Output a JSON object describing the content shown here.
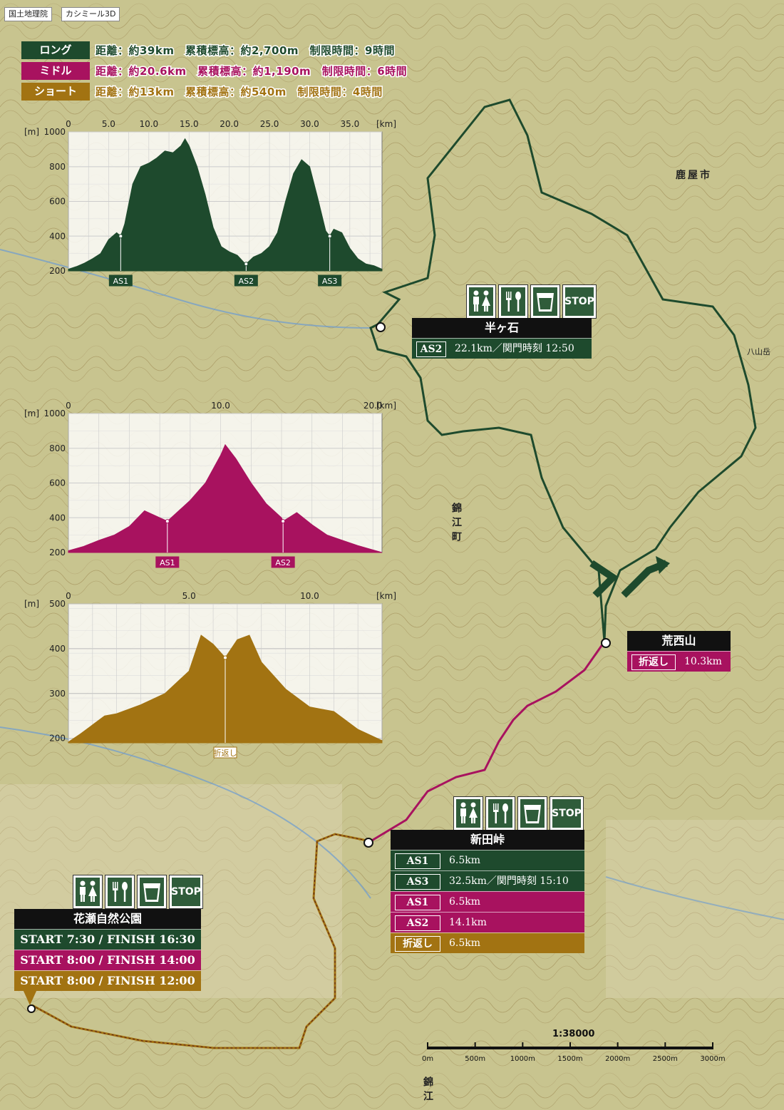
{
  "credits": {
    "gsi": "国土地理院",
    "kashmir": "カシミール3D"
  },
  "colors": {
    "long": "#1e4a2d",
    "middle": "#a8125f",
    "short": "#a27312"
  },
  "courses": [
    {
      "tag": "ロング",
      "info": "距離：約39km　累積標高：約2,700m　制限時間：9時間",
      "color": "#1e4a2d"
    },
    {
      "tag": "ミドル",
      "info": "距離：約20.6km　累積標高：約1,190m　制限時間：6時間",
      "color": "#a8125f"
    },
    {
      "tag": "ショート",
      "info": "距離：約13km　累積標高：約540m　制限時間：4時間",
      "color": "#a27312"
    }
  ],
  "chart_data": [
    {
      "type": "area",
      "name": "long-profile",
      "yunit": "[m]",
      "xunit": "[km]",
      "xticks": [
        "0",
        "5.0",
        "10.0",
        "15.0",
        "20.0",
        "25.0",
        "30.0",
        "35.0"
      ],
      "yticks": [
        "1000",
        "800",
        "600",
        "400",
        "200"
      ],
      "xlim": [
        0,
        39
      ],
      "ylim": [
        200,
        1000
      ],
      "x": [
        0,
        1,
        2,
        3,
        4,
        5,
        6,
        6.5,
        7,
        8,
        9,
        10,
        11,
        12,
        13,
        14,
        14.5,
        15,
        16,
        17,
        18,
        19,
        20,
        21,
        22,
        22.1,
        23,
        24,
        25,
        26,
        27,
        28,
        29,
        30,
        31,
        32,
        32.5,
        33,
        34,
        35,
        36,
        37,
        38,
        39
      ],
      "y": [
        210,
        225,
        245,
        270,
        300,
        380,
        420,
        400,
        470,
        700,
        800,
        820,
        850,
        890,
        880,
        920,
        960,
        920,
        800,
        640,
        450,
        340,
        310,
        290,
        240,
        240,
        280,
        300,
        340,
        420,
        600,
        760,
        840,
        800,
        620,
        430,
        400,
        440,
        420,
        330,
        270,
        240,
        230,
        210
      ],
      "markers": [
        {
          "x": 6.5,
          "label": "AS1"
        },
        {
          "x": 22.1,
          "label": "AS2"
        },
        {
          "x": 32.5,
          "label": "AS3"
        }
      ]
    },
    {
      "type": "area",
      "name": "middle-profile",
      "yunit": "[m]",
      "xunit": "[km]",
      "xticks": [
        "0",
        "10.0",
        "20.0"
      ],
      "yticks": [
        "1000",
        "800",
        "600",
        "400",
        "200"
      ],
      "xlim": [
        0,
        20.6
      ],
      "ylim": [
        200,
        1000
      ],
      "x": [
        0,
        1,
        2,
        3,
        4,
        5,
        6,
        6.5,
        7,
        8,
        9,
        10,
        10.3,
        11,
        12,
        13,
        14,
        14.1,
        15,
        16,
        17,
        18,
        19,
        20,
        20.6
      ],
      "y": [
        210,
        235,
        270,
        300,
        350,
        440,
        400,
        380,
        420,
        500,
        600,
        760,
        820,
        740,
        600,
        480,
        400,
        380,
        430,
        360,
        300,
        270,
        240,
        215,
        200
      ],
      "markers": [
        {
          "x": 6.5,
          "label": "AS1"
        },
        {
          "x": 14.1,
          "label": "AS2"
        }
      ]
    },
    {
      "type": "area",
      "name": "short-profile",
      "yunit": "[m]",
      "xunit": "[km]",
      "xticks": [
        "0",
        "5.0",
        "10.0"
      ],
      "yticks": [
        "500",
        "400",
        "300",
        "200"
      ],
      "xlim": [
        0,
        13
      ],
      "ylim": [
        190,
        500
      ],
      "x": [
        0,
        0.5,
        1,
        1.5,
        2,
        3,
        4,
        5,
        5.5,
        6,
        6.5,
        7,
        7.5,
        8,
        9,
        10,
        10.5,
        11,
        11.5,
        12,
        13
      ],
      "y": [
        192,
        210,
        230,
        250,
        255,
        275,
        300,
        350,
        430,
        410,
        380,
        420,
        430,
        370,
        310,
        270,
        265,
        260,
        240,
        220,
        195
      ],
      "markers": [
        {
          "x": 6.5,
          "label": "折返し"
        }
      ]
    }
  ],
  "poi": {
    "hangaishi": {
      "name": "半ヶ石",
      "rows": [
        {
          "tag": "AS2",
          "value": "22.1km／関門時刻 12:50",
          "color": "#1e4a2d"
        }
      ]
    },
    "arasaiyama": {
      "name": "荒西山",
      "rows": [
        {
          "tag": "折返し",
          "value": "10.3km",
          "color": "#a8125f"
        }
      ]
    },
    "shindatoge": {
      "name": "新田峠",
      "rows": [
        {
          "tag": "AS1",
          "value": "6.5km",
          "color": "#1e4a2d"
        },
        {
          "tag": "AS3",
          "value": "32.5km／関門時刻 15:10",
          "color": "#1e4a2d"
        },
        {
          "tag": "AS1",
          "value": "6.5km",
          "color": "#a8125f"
        },
        {
          "tag": "AS2",
          "value": "14.1km",
          "color": "#a8125f"
        },
        {
          "tag": "折返し",
          "value": "6.5km",
          "color": "#a27312"
        }
      ]
    },
    "hanase": {
      "name": "花瀬自然公園",
      "rows": [
        {
          "value": "START 7:30 / FINISH 16:30",
          "color": "#1e4a2d"
        },
        {
          "value": "START 8:00 / FINISH 14:00",
          "color": "#a8125f"
        },
        {
          "value": "START 8:00 / FINISH 12:00",
          "color": "#a27312"
        }
      ]
    }
  },
  "stop_label": "STOP",
  "map_labels": {
    "kanoya": "鹿屋市",
    "nishikie": "錦江町",
    "nishikie_bottom": "錦江",
    "yatsuyama": "八山岳"
  },
  "scale": {
    "ratio": "1:38000",
    "ticks": [
      "0m",
      "500m",
      "1000m",
      "1500m",
      "2000m",
      "2500m",
      "3000m"
    ]
  }
}
